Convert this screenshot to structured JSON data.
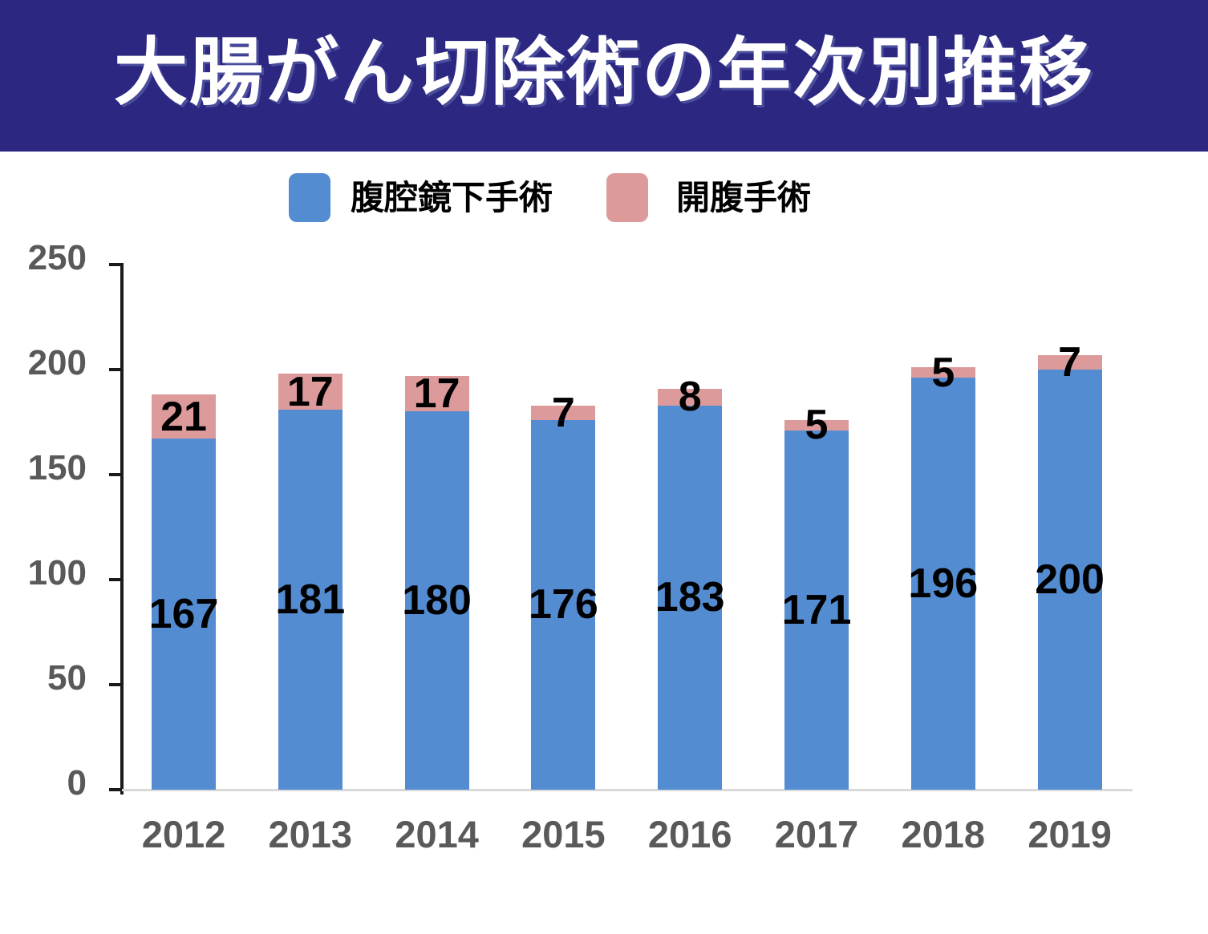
{
  "header": {
    "title": "大腸がん切除術の年次別推移",
    "background_color": "#2C2780",
    "text_color": "#FFFFFF"
  },
  "chart_data": {
    "type": "bar",
    "stacked": true,
    "title": "大腸がん切除術の年次別推移",
    "categories": [
      "2012",
      "2013",
      "2014",
      "2015",
      "2016",
      "2017",
      "2018",
      "2019"
    ],
    "series": [
      {
        "name": "腹腔鏡下手術",
        "color": "#548CD2",
        "values": [
          167,
          181,
          180,
          176,
          183,
          171,
          196,
          200
        ]
      },
      {
        "name": "開腹手術",
        "color": "#DD9A9B",
        "values": [
          21,
          17,
          17,
          7,
          8,
          5,
          5,
          7
        ]
      }
    ],
    "totals": [
      188,
      198,
      197,
      183,
      191,
      176,
      201,
      207
    ],
    "xlabel": "",
    "ylabel": "",
    "ylim": [
      0,
      250
    ],
    "yticks": [
      0,
      50,
      100,
      150,
      200,
      250
    ],
    "grid": false,
    "legend_position": "top",
    "data_labels": "segment-centered",
    "axis_color": "#1A1A1A",
    "tick_label_color": "#595959",
    "data_label_color": "#000000",
    "baseline_color": "#D9D9D9"
  }
}
